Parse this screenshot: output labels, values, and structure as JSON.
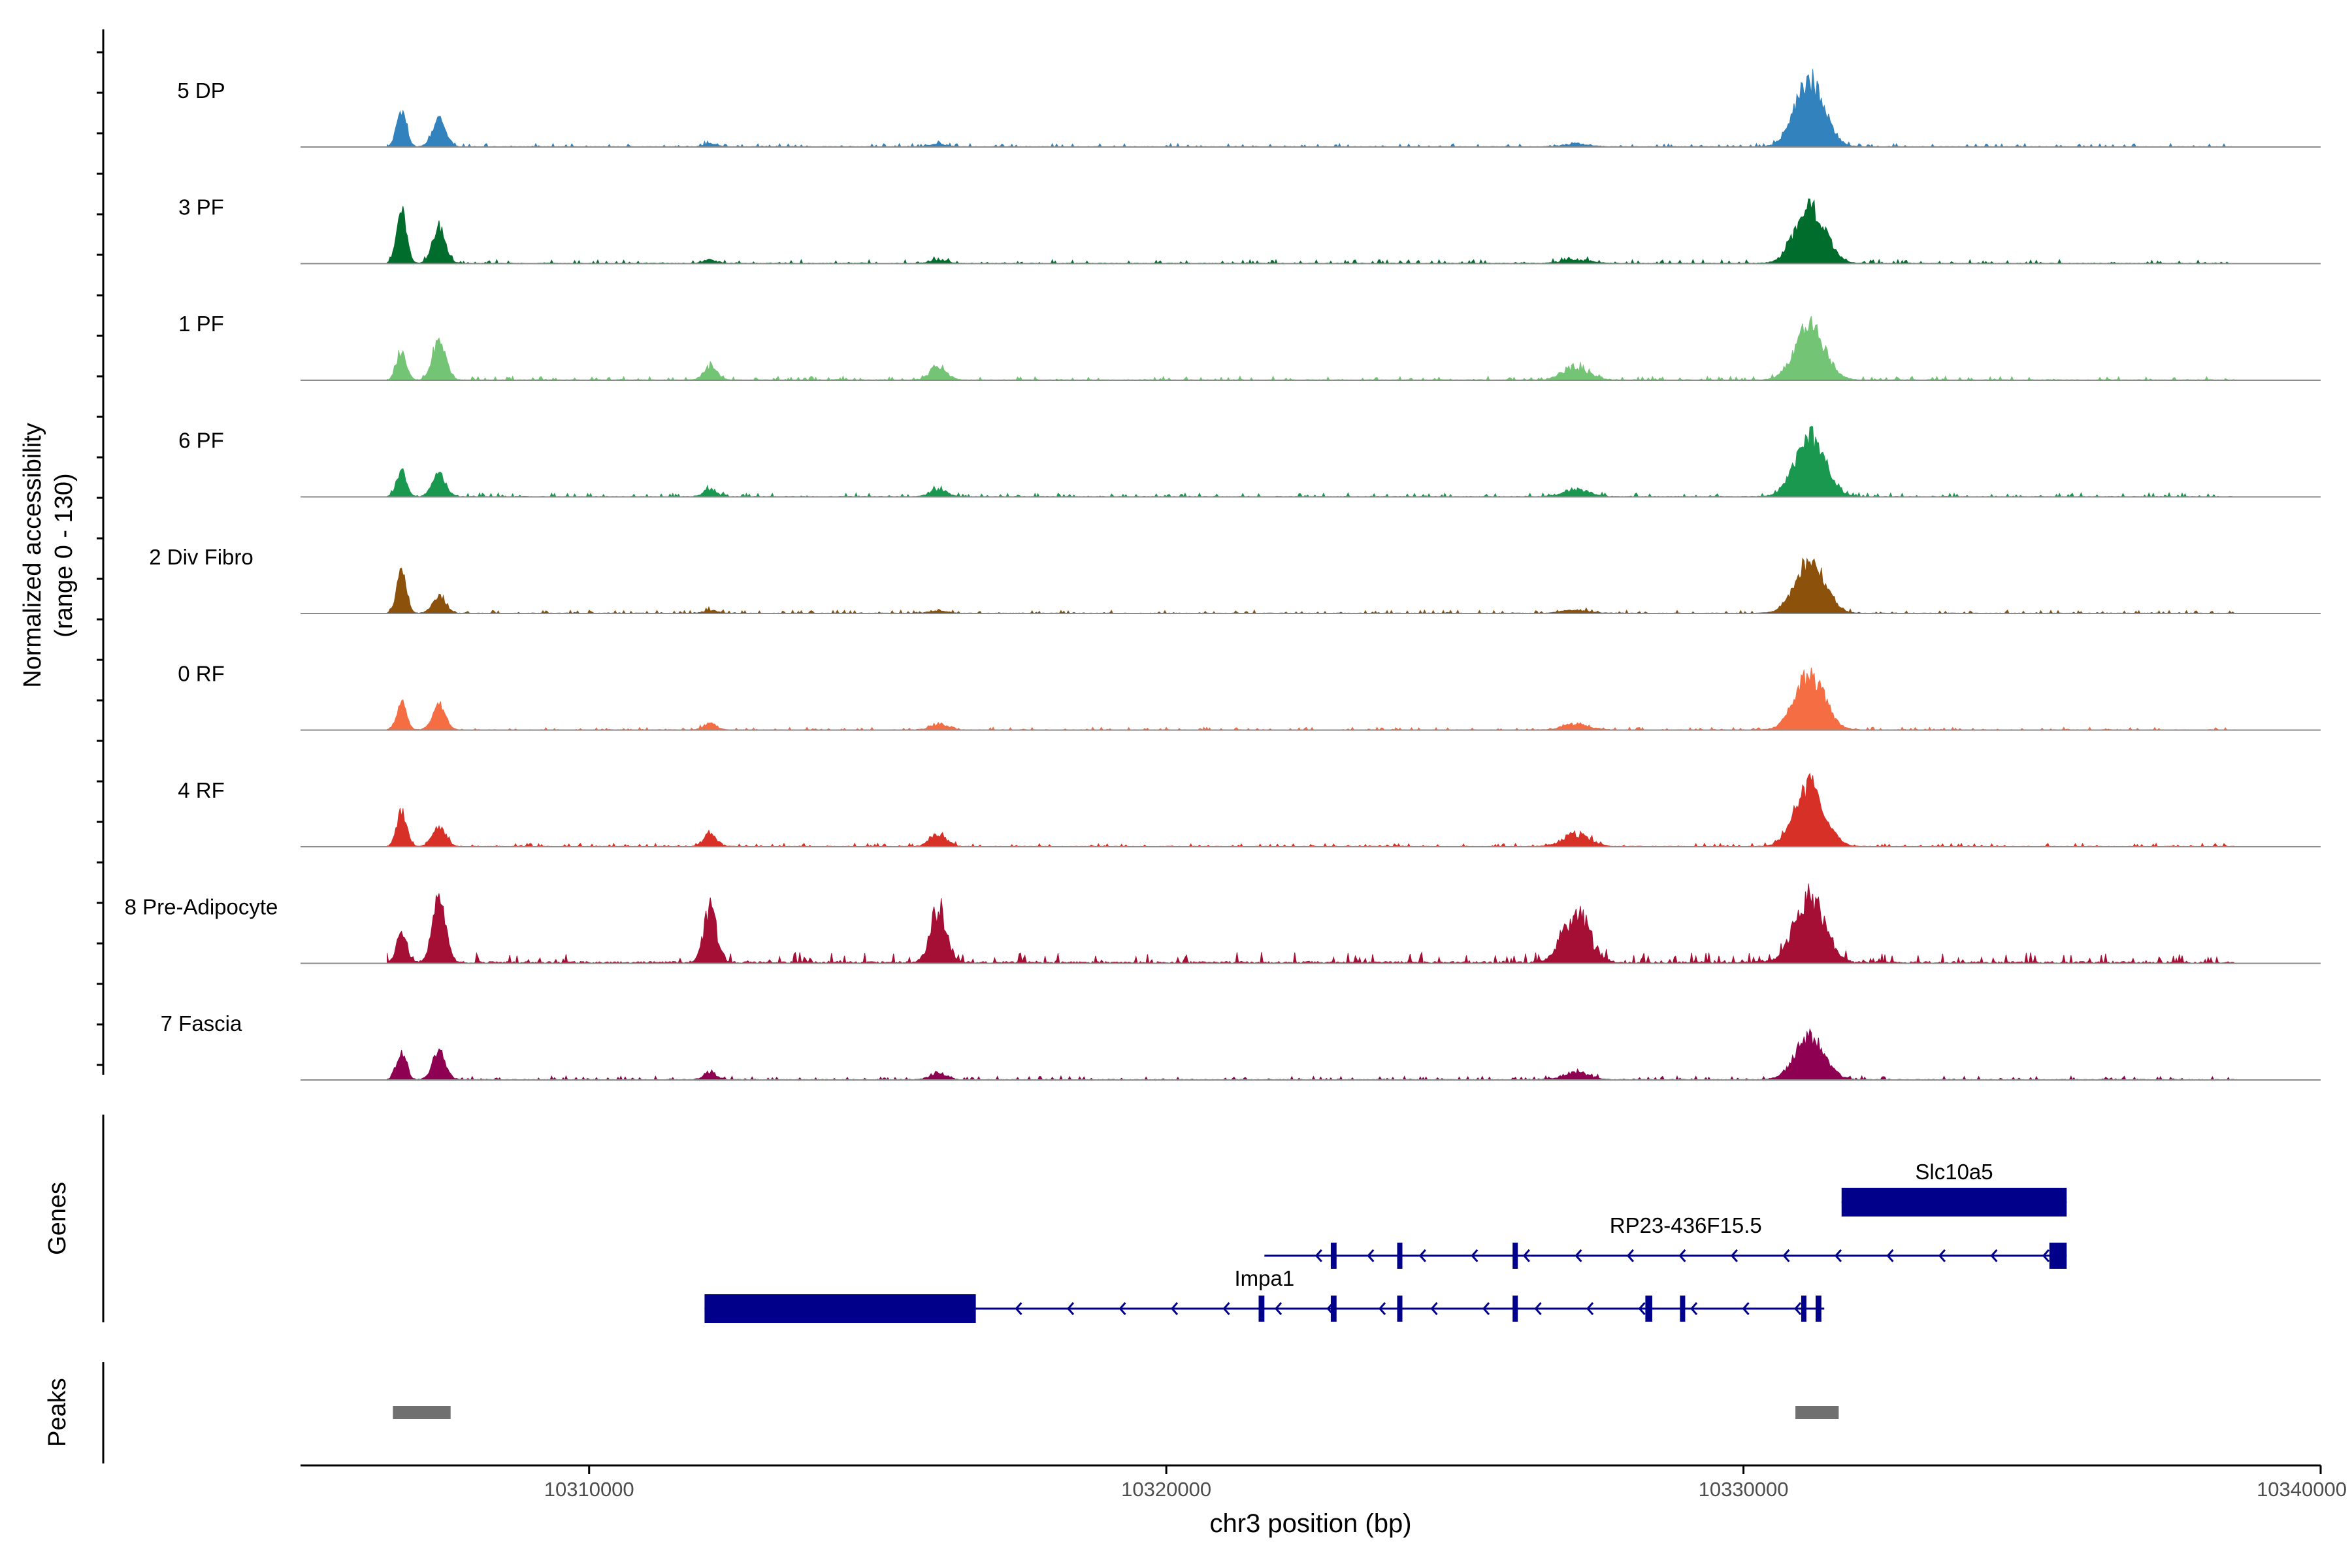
{
  "chart_data": {
    "type": "area",
    "title": "",
    "region": {
      "chrom": "chr3",
      "start": 10305000,
      "end": 10340000
    },
    "coverage": {
      "ylabel": "Normalized accessibility",
      "ylabel_range": "(range 0 - 130)",
      "ylim": [
        0,
        130
      ],
      "peak_windows_bp": [
        [
          10306600,
          10306900
        ],
        [
          10307200,
          10307600
        ],
        [
          10330700,
          10331600
        ]
      ],
      "secondary_peaks_bp": [
        [
          10311900,
          10312300
        ],
        [
          10315800,
          10316300
        ],
        [
          10326700,
          10327500
        ]
      ],
      "tracks": [
        {
          "name": "5 DP",
          "color": "#3182BD",
          "peak1": 0.55,
          "peak2": 0.42,
          "main": 1.0,
          "second": 0.05,
          "noise": 0.06
        },
        {
          "name": "3 PF",
          "color": "#006D2C",
          "peak1": 0.78,
          "peak2": 0.52,
          "main": 0.88,
          "second": 0.06,
          "noise": 0.07
        },
        {
          "name": "1 PF",
          "color": "#74C476",
          "peak1": 0.42,
          "peak2": 0.58,
          "main": 0.82,
          "second": 0.22,
          "noise": 0.07
        },
        {
          "name": "6 PF",
          "color": "#1A9850",
          "peak1": 0.4,
          "peak2": 0.33,
          "main": 0.92,
          "second": 0.12,
          "noise": 0.07
        },
        {
          "name": "2 Div Fibro",
          "color": "#8C510A",
          "peak1": 0.6,
          "peak2": 0.25,
          "main": 0.8,
          "second": 0.05,
          "noise": 0.06
        },
        {
          "name": "0 RF",
          "color": "#F46D43",
          "peak1": 0.4,
          "peak2": 0.38,
          "main": 0.85,
          "second": 0.1,
          "noise": 0.05
        },
        {
          "name": "4 RF",
          "color": "#D73027",
          "peak1": 0.52,
          "peak2": 0.3,
          "main": 0.95,
          "second": 0.22,
          "noise": 0.06
        },
        {
          "name": "8 Pre-Adipocyte",
          "color": "#A50F35",
          "peak1": 0.45,
          "peak2": 0.95,
          "main": 1.0,
          "second": 0.85,
          "noise": 0.2
        },
        {
          "name": "7 Fascia",
          "color": "#8E0152",
          "peak1": 0.38,
          "peak2": 0.4,
          "main": 0.65,
          "second": 0.12,
          "noise": 0.07
        }
      ]
    },
    "genes": {
      "label": "Genes",
      "color": "#00008B",
      "items": [
        {
          "name": "Slc10a5",
          "start": 10331700,
          "end": 10335600,
          "strand": "-",
          "row": 0,
          "exons": [
            [
              10331700,
              10335600
            ]
          ]
        },
        {
          "name": "RP23-436F15.5",
          "start": 10321700,
          "end": 10335600,
          "strand": "-",
          "row": 1,
          "exons": [
            [
              10322850,
              10322950
            ],
            [
              10324000,
              10324030
            ],
            [
              10326000,
              10326080
            ],
            [
              10335300,
              10335600
            ]
          ]
        },
        {
          "name": "Impa1",
          "start": 10312000,
          "end": 10331400,
          "strand": "-",
          "row": 2,
          "exons": [
            [
              10312000,
              10316700
            ],
            [
              10321600,
              10321700
            ],
            [
              10322850,
              10322950
            ],
            [
              10324000,
              10324030
            ],
            [
              10326000,
              10326080
            ],
            [
              10328300,
              10328420
            ],
            [
              10328900,
              10328950
            ],
            [
              10331000,
              10331050
            ],
            [
              10331250,
              10331350
            ]
          ]
        }
      ]
    },
    "peaks": {
      "label": "Peaks",
      "color": "#707070",
      "items": [
        [
          10306600,
          10307600
        ],
        [
          10330900,
          10331650
        ]
      ]
    },
    "xaxis": {
      "label": "chr3 position (bp)",
      "ticks": [
        10310000,
        10320000,
        10330000,
        10340000
      ],
      "tick_labels": [
        "10310000",
        "10320000",
        "10330000",
        "10340000"
      ]
    }
  }
}
